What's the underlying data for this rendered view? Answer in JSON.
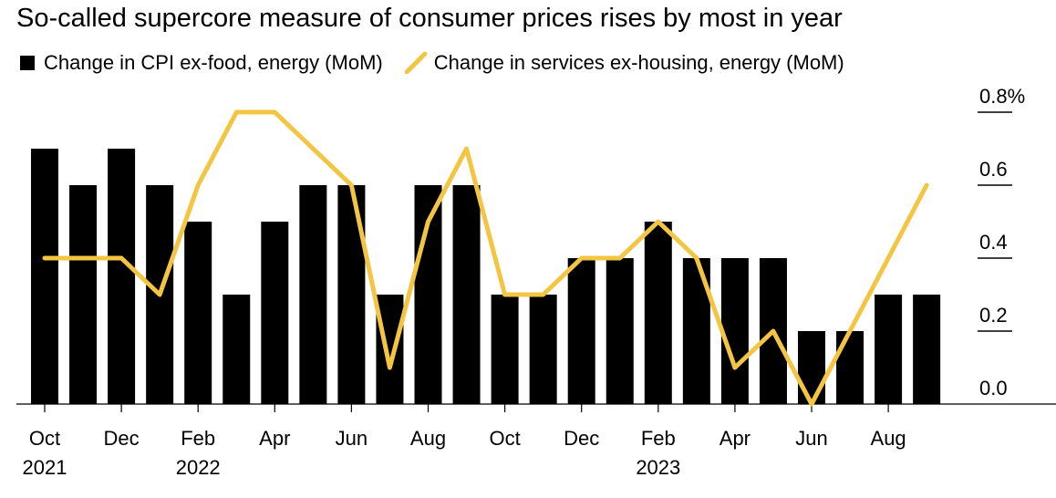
{
  "title": "So-called supercore measure of consumer prices rises by most in year",
  "legend": {
    "bars_label": "Change in CPI ex-food, energy (MoM)",
    "line_label": "Change in services ex-housing, energy (MoM)"
  },
  "colors": {
    "bars": "#000000",
    "line": "#f4c542",
    "axis": "#000000"
  },
  "chart_data": {
    "type": "bar+line",
    "categories": [
      "Oct 2021",
      "Nov 2021",
      "Dec 2021",
      "Jan 2022",
      "Feb 2022",
      "Mar 2022",
      "Apr 2022",
      "May 2022",
      "Jun 2022",
      "Jul 2022",
      "Aug 2022",
      "Sep 2022",
      "Oct 2022",
      "Nov 2022",
      "Dec 2022",
      "Jan 2023",
      "Feb 2023",
      "Mar 2023",
      "Apr 2023",
      "May 2023",
      "Jun 2023",
      "Jul 2023",
      "Aug 2023",
      "Sep 2023"
    ],
    "series": [
      {
        "name": "Change in CPI ex-food, energy (MoM)",
        "kind": "bar",
        "values": [
          0.7,
          0.6,
          0.7,
          0.6,
          0.5,
          0.3,
          0.5,
          0.6,
          0.6,
          0.3,
          0.6,
          0.6,
          0.3,
          0.3,
          0.4,
          0.4,
          0.5,
          0.4,
          0.4,
          0.4,
          0.2,
          0.2,
          0.3,
          0.3
        ]
      },
      {
        "name": "Change in services ex-housing, energy (MoM)",
        "kind": "line",
        "values": [
          0.4,
          0.4,
          0.4,
          0.3,
          0.6,
          0.8,
          0.8,
          0.7,
          0.6,
          0.1,
          0.5,
          0.7,
          0.3,
          0.3,
          0.4,
          0.4,
          0.5,
          0.4,
          0.1,
          0.2,
          0.0,
          0.2,
          0.4,
          0.6
        ]
      }
    ],
    "ylim": [
      0,
      0.8
    ],
    "y_ticks": [
      {
        "value": 0.8,
        "label": "0.8%"
      },
      {
        "value": 0.6,
        "label": "0.6"
      },
      {
        "value": 0.4,
        "label": "0.4"
      },
      {
        "value": 0.2,
        "label": "0.2"
      },
      {
        "value": 0.0,
        "label": "0.0"
      }
    ],
    "x_ticks": [
      {
        "index": 0,
        "label": "Oct",
        "year": "2021"
      },
      {
        "index": 2,
        "label": "Dec",
        "year": ""
      },
      {
        "index": 4,
        "label": "Feb",
        "year": "2022"
      },
      {
        "index": 6,
        "label": "Apr",
        "year": ""
      },
      {
        "index": 8,
        "label": "Jun",
        "year": ""
      },
      {
        "index": 10,
        "label": "Aug",
        "year": ""
      },
      {
        "index": 12,
        "label": "Oct",
        "year": ""
      },
      {
        "index": 14,
        "label": "Dec",
        "year": ""
      },
      {
        "index": 16,
        "label": "Feb",
        "year": "2023"
      },
      {
        "index": 18,
        "label": "Apr",
        "year": ""
      },
      {
        "index": 20,
        "label": "Jun",
        "year": ""
      },
      {
        "index": 22,
        "label": "Aug",
        "year": ""
      }
    ],
    "y_axis_position": "right",
    "grid": false
  }
}
